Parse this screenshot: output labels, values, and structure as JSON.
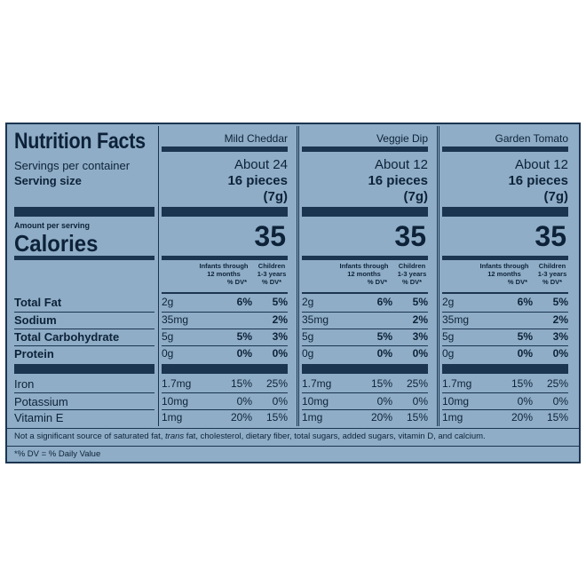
{
  "title": "Nutrition Facts",
  "servings_label": "Servings per container",
  "serving_size_label": "Serving size",
  "amount_label": "Amount per serving",
  "calories_label": "Calories",
  "dv_headers": {
    "infants": [
      "Infants through",
      "12 months",
      "% DV*"
    ],
    "children": [
      "Children",
      "1-3 years",
      "% DV*"
    ]
  },
  "nutrient_labels": [
    "Total Fat",
    "Sodium",
    "Total Carbohydrate",
    "Protein",
    "Iron",
    "Potassium",
    "Vitamin E"
  ],
  "columns": [
    {
      "name": "Mild Cheddar",
      "servings": "About 24",
      "serving_size": "16 pieces",
      "serving_weight": "(7g)",
      "calories": "35",
      "rows": [
        [
          "2g",
          "6%",
          "5%"
        ],
        [
          "35mg",
          "",
          "2%"
        ],
        [
          "5g",
          "5%",
          "3%"
        ],
        [
          "0g",
          "0%",
          "0%"
        ],
        [
          "1.7mg",
          "15%",
          "25%"
        ],
        [
          "10mg",
          "0%",
          "0%"
        ],
        [
          "1mg",
          "20%",
          "15%"
        ]
      ]
    },
    {
      "name": "Veggie Dip",
      "servings": "About 12",
      "serving_size": "16 pieces",
      "serving_weight": "(7g)",
      "calories": "35",
      "rows": [
        [
          "2g",
          "6%",
          "5%"
        ],
        [
          "35mg",
          "",
          "2%"
        ],
        [
          "5g",
          "5%",
          "3%"
        ],
        [
          "0g",
          "0%",
          "0%"
        ],
        [
          "1.7mg",
          "15%",
          "25%"
        ],
        [
          "10mg",
          "0%",
          "0%"
        ],
        [
          "1mg",
          "20%",
          "15%"
        ]
      ]
    },
    {
      "name": "Garden Tomato",
      "servings": "About 12",
      "serving_size": "16 pieces",
      "serving_weight": "(7g)",
      "calories": "35",
      "rows": [
        [
          "2g",
          "6%",
          "5%"
        ],
        [
          "35mg",
          "",
          "2%"
        ],
        [
          "5g",
          "5%",
          "3%"
        ],
        [
          "0g",
          "0%",
          "0%"
        ],
        [
          "1.7mg",
          "15%",
          "25%"
        ],
        [
          "10mg",
          "0%",
          "0%"
        ],
        [
          "1mg",
          "20%",
          "15%"
        ]
      ]
    }
  ],
  "footnote_before": "Not a significant source of saturated fat, ",
  "footnote_italic": "trans",
  "footnote_after": " fat, cholesterol, dietary fiber, total sugars, added sugars, vitamin D, and calcium.",
  "dv_note": "*% DV = % Daily Value",
  "colors": {
    "background": "#8fadc7",
    "ink": "#1b3550"
  }
}
